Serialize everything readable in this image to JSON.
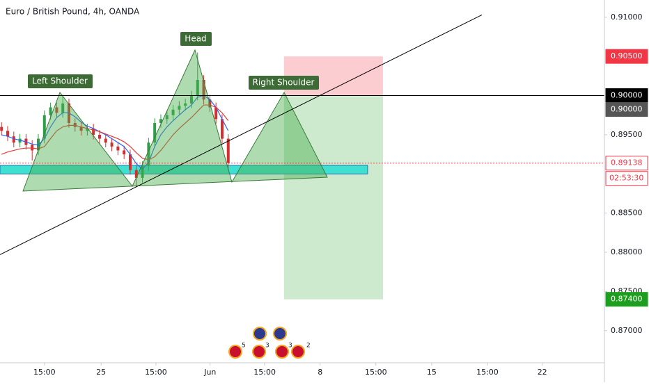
{
  "chart_data": {
    "type": "candlestick",
    "title": "Euro / British Pound, 4h, OANDA",
    "x": [
      0,
      2,
      4,
      6,
      8,
      10,
      12,
      14,
      16,
      18,
      20,
      22,
      24,
      26,
      28,
      30,
      32,
      34,
      36,
      38,
      40,
      42,
      44,
      46,
      48,
      50,
      52,
      54,
      56,
      58,
      60,
      62,
      64,
      66,
      68,
      70,
      72,
      74
    ],
    "open": [
      0.896,
      0.8955,
      0.8948,
      0.894,
      0.8945,
      0.8937,
      0.893,
      0.8945,
      0.8975,
      0.8985,
      0.8978,
      0.899,
      0.8965,
      0.896,
      0.8955,
      0.8958,
      0.895,
      0.8945,
      0.894,
      0.8935,
      0.893,
      0.8925,
      0.8905,
      0.8895,
      0.891,
      0.894,
      0.8965,
      0.897,
      0.8975,
      0.8982,
      0.8987,
      0.899,
      0.9,
      0.902,
      0.8995,
      0.8985,
      0.897,
      0.8945
    ],
    "high": [
      0.8966,
      0.8961,
      0.8954,
      0.8951,
      0.8951,
      0.8943,
      0.8951,
      0.8981,
      0.8991,
      0.8991,
      0.9001,
      0.8996,
      0.8971,
      0.8966,
      0.8964,
      0.8964,
      0.8956,
      0.8951,
      0.8946,
      0.8941,
      0.8936,
      0.8931,
      0.8911,
      0.8916,
      0.8946,
      0.8971,
      0.8976,
      0.8981,
      0.8988,
      0.8993,
      0.8996,
      0.9006,
      0.9055,
      0.9026,
      0.9001,
      0.8991,
      0.8976,
      0.8951
    ],
    "low": [
      0.8949,
      0.8942,
      0.8934,
      0.8934,
      0.8931,
      0.8917,
      0.8924,
      0.8939,
      0.8969,
      0.8972,
      0.8972,
      0.8959,
      0.8954,
      0.8949,
      0.8949,
      0.8944,
      0.8939,
      0.8934,
      0.8929,
      0.8924,
      0.8919,
      0.8899,
      0.8883,
      0.8889,
      0.8904,
      0.8934,
      0.8959,
      0.8964,
      0.8969,
      0.8976,
      0.8981,
      0.8984,
      0.8994,
      0.8989,
      0.8979,
      0.8964,
      0.8939,
      0.8905
    ],
    "close": [
      0.8955,
      0.8948,
      0.894,
      0.8945,
      0.8937,
      0.893,
      0.8945,
      0.8975,
      0.8985,
      0.8978,
      0.899,
      0.8965,
      0.896,
      0.8955,
      0.8958,
      0.895,
      0.8945,
      0.894,
      0.8935,
      0.893,
      0.8925,
      0.8905,
      0.8895,
      0.891,
      0.894,
      0.8965,
      0.897,
      0.8975,
      0.8982,
      0.8987,
      0.899,
      0.9,
      0.902,
      0.8995,
      0.8985,
      0.897,
      0.8945,
      0.8914
    ],
    "up_color": "#2e9e48",
    "down_color": "#d32f2f",
    "series": [
      {
        "color": "#2962ff",
        "values": [
          0.895,
          0.8948,
          0.8945,
          0.8943,
          0.8941,
          0.8938,
          0.8937,
          0.8945,
          0.896,
          0.8972,
          0.8978,
          0.8978,
          0.8973,
          0.8966,
          0.8961,
          0.8958,
          0.8954,
          0.895,
          0.8945,
          0.894,
          0.8935,
          0.8925,
          0.8913,
          0.8906,
          0.8915,
          0.8935,
          0.895,
          0.896,
          0.8968,
          0.8975,
          0.8982,
          0.8988,
          0.8998,
          0.9,
          0.8995,
          0.8985,
          0.897,
          0.8955
        ]
      },
      {
        "color": "#e53935",
        "values": [
          0.8925,
          0.8928,
          0.893,
          0.8932,
          0.8933,
          0.8933,
          0.8932,
          0.8935,
          0.8945,
          0.8955,
          0.896,
          0.8962,
          0.8962,
          0.896,
          0.8958,
          0.8956,
          0.8954,
          0.8951,
          0.8948,
          0.8945,
          0.8941,
          0.8935,
          0.8927,
          0.892,
          0.8918,
          0.8922,
          0.893,
          0.894,
          0.895,
          0.8958,
          0.8965,
          0.8972,
          0.898,
          0.8988,
          0.8988,
          0.8985,
          0.8978,
          0.8968
        ]
      }
    ],
    "xlim": [
      -0.5,
      196.8
    ],
    "ylim": [
      0.8659,
      0.9122
    ],
    "xticks": [
      {
        "value": 14,
        "label": "15:00"
      },
      {
        "value": 32.5,
        "label": "25"
      },
      {
        "value": 50.4,
        "label": "15:00"
      },
      {
        "value": 68.1,
        "label": "Jun"
      },
      {
        "value": 85.9,
        "label": "15:00"
      },
      {
        "value": 104,
        "label": "8"
      },
      {
        "value": 122.2,
        "label": "15:00"
      },
      {
        "value": 140.4,
        "label": "15"
      },
      {
        "value": 158.6,
        "label": "15:00"
      },
      {
        "value": 176.5,
        "label": "22"
      }
    ],
    "yticks": [
      {
        "value": 0.91,
        "label": "0.91000"
      },
      {
        "value": 0.895,
        "label": "0.89500"
      },
      {
        "value": 0.885,
        "label": "0.88500"
      },
      {
        "value": 0.88,
        "label": "0.88000"
      },
      {
        "value": 0.875,
        "label": "0.87500"
      },
      {
        "value": 0.87,
        "label": "0.87000"
      }
    ],
    "price_labels": [
      {
        "value": 0.905,
        "label": "0.90500",
        "color": "#f23645"
      },
      {
        "value": 0.9,
        "label": "0.90000",
        "color": "#000000"
      },
      {
        "value": 0.9,
        "label": "0.90000",
        "color": "#555555"
      },
      {
        "value": 0.89138,
        "label": "0.89138",
        "color": "#f23645",
        "outline": true
      },
      {
        "value": 0.874,
        "label": "0.87400",
        "color": "#1e9e1e"
      }
    ],
    "countdown": "02:53:30",
    "neckline": 0.9,
    "position": {
      "entry": 0.9,
      "stop": 0.905,
      "target": 0.874,
      "x_start": 92.2,
      "x_end": 124.5
    },
    "zone": {
      "top": 0.8911,
      "bottom": 0.89,
      "x_end": 119.5
    },
    "trendline": {
      "x": [
        -0.5,
        156.8
      ],
      "y": [
        0.8797,
        0.9103
      ]
    },
    "annotations": [
      "Left Shoulder",
      "Head",
      "Right Shoulder"
    ],
    "events": [
      "5",
      "3",
      "3",
      "2"
    ]
  }
}
